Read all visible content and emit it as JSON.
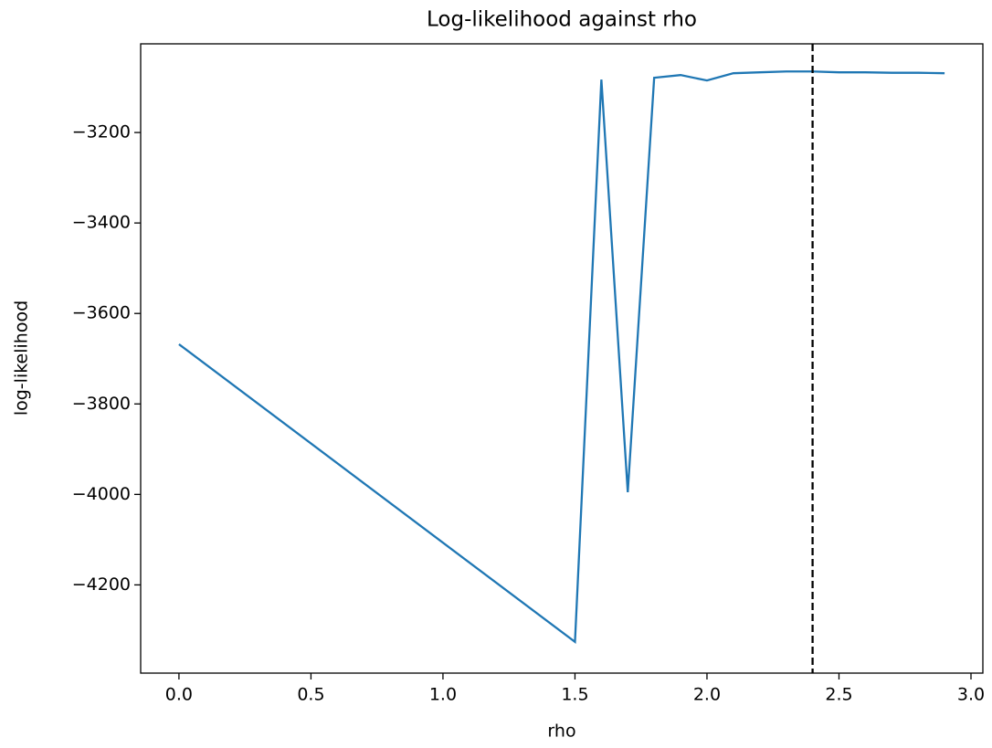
{
  "chart_data": {
    "type": "line",
    "title": "Log-likelihood against rho",
    "x_label": "rho",
    "y_label": "log-likelihood",
    "x": [
      0.0,
      1.5,
      1.6,
      1.7,
      1.8,
      1.9,
      2.0,
      2.1,
      2.2,
      2.3,
      2.4,
      2.5,
      2.6,
      2.7,
      2.8,
      2.9
    ],
    "series": [
      {
        "color": "#1f77b4",
        "values": [
          -3668,
          -4326,
          -3083,
          -3995,
          -3079,
          -3073,
          -3085,
          -3069,
          -3067,
          -3065,
          -3065,
          -3067,
          -3067,
          -3068,
          -3068,
          -3069
        ]
      }
    ],
    "vline": {
      "x": 2.4,
      "color": "#000000",
      "style": "dashed"
    },
    "xlim": [
      -0.145,
      3.045
    ],
    "ylim": [
      -4395,
      -3004
    ],
    "xticks": [
      {
        "value": 0,
        "label": "0.0"
      },
      0.5,
      {
        "value": 1,
        "label": "1.0"
      },
      1.5,
      {
        "value": 2,
        "label": "2.0"
      },
      2.5,
      {
        "value": 3,
        "label": "3.0"
      }
    ],
    "yticks": [
      {
        "value": -4200,
        "label": "−4200"
      },
      {
        "value": -4000,
        "label": "−4000"
      },
      {
        "value": -3800,
        "label": "−3800"
      },
      {
        "value": -3600,
        "label": "−3600"
      },
      {
        "value": -3400,
        "label": "−3400"
      },
      {
        "value": -3200,
        "label": "−3200"
      }
    ],
    "grid": false
  }
}
